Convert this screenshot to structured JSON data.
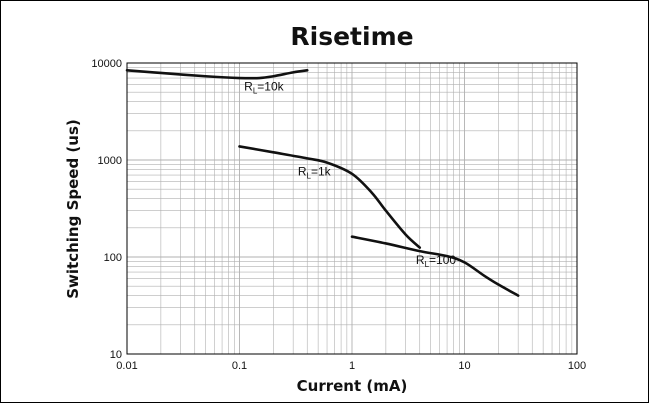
{
  "chart_data": {
    "type": "line",
    "title": "Risetime",
    "xlabel": "Current (mA)",
    "ylabel": "Switching Speed (us)",
    "x_scale": "log",
    "y_scale": "log",
    "xlim": [
      0.01,
      100
    ],
    "ylim": [
      10,
      10000
    ],
    "grid": true,
    "x_ticks": [
      "0.01",
      "0.1",
      "1",
      "10",
      "100"
    ],
    "y_ticks": [
      "10",
      "100",
      "1000",
      "10000"
    ],
    "colors": {
      "frame": "#000000",
      "grid": "#b0b0b0",
      "line": "#111111"
    },
    "series": [
      {
        "label_main": "R",
        "label_sub": "L",
        "label_value": "=10k",
        "x": [
          0.01,
          0.02,
          0.05,
          0.1,
          0.15,
          0.2,
          0.3,
          0.4
        ],
        "y": [
          8400,
          7900,
          7300,
          7000,
          7000,
          7300,
          8000,
          8400
        ]
      },
      {
        "label_main": "R",
        "label_sub": "L",
        "label_value": "=1k",
        "x": [
          0.1,
          0.2,
          0.4,
          0.6,
          1.0,
          1.5,
          2.0,
          3.0,
          4.0
        ],
        "y": [
          1380,
          1200,
          1040,
          940,
          720,
          460,
          300,
          170,
          125
        ]
      },
      {
        "label_main": "R",
        "label_sub": "L",
        "label_value": "=100",
        "x": [
          1,
          2,
          4,
          7,
          10,
          15,
          20,
          30
        ],
        "y": [
          162,
          138,
          115,
          102,
          88,
          64,
          52,
          40
        ]
      }
    ]
  }
}
